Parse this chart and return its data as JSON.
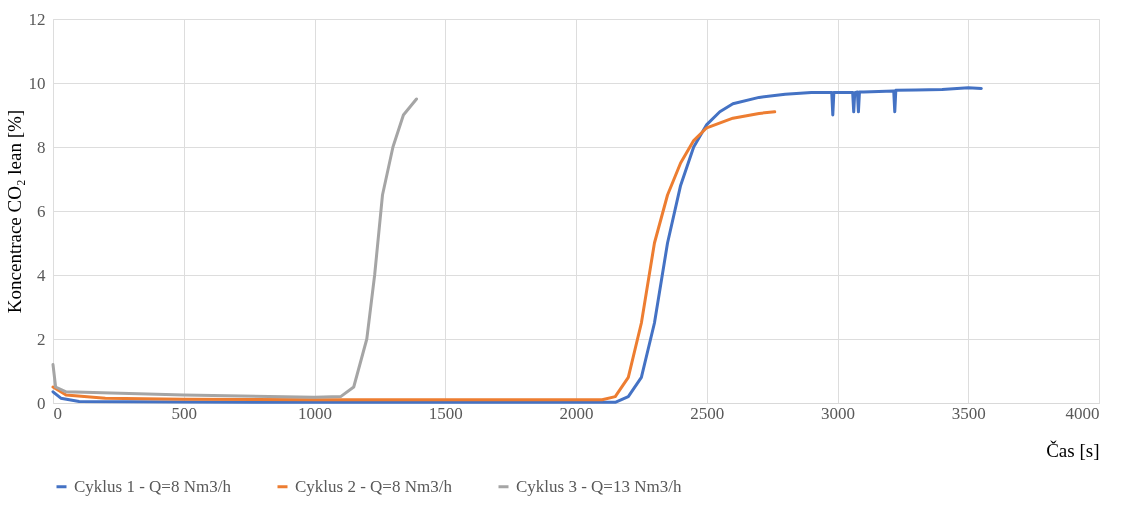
{
  "chart_data": {
    "type": "line",
    "xlabel": "Čas [s]",
    "ylabel": "Koncentrace CO₂ lean [%]",
    "xlim": [
      0,
      4000
    ],
    "xticks": [
      0,
      500,
      1000,
      1500,
      2000,
      2500,
      3000,
      3500,
      4000
    ],
    "ylim": [
      0,
      12
    ],
    "yticks": [
      0,
      2,
      4,
      6,
      8,
      10,
      12
    ],
    "grid": true,
    "legend": "bottom",
    "line_style": "solid",
    "marker": "none",
    "series": [
      {
        "name": "Cyklus 1 - Q=8 Nm3/h",
        "color": "#4472c4",
        "x": [
          0,
          30,
          100,
          500,
          1000,
          1500,
          2000,
          2150,
          2200,
          2250,
          2300,
          2350,
          2400,
          2450,
          2500,
          2550,
          2600,
          2700,
          2800,
          2900,
          2978,
          2982,
          2986,
          3000,
          3058,
          3062,
          3066,
          3076,
          3080,
          3084,
          3100,
          3215,
          3219,
          3223,
          3300,
          3400,
          3500,
          3550
        ],
        "values": [
          0.35,
          0.15,
          0.05,
          0.03,
          0.02,
          0.02,
          0.02,
          0.02,
          0.2,
          0.8,
          2.5,
          5.0,
          6.8,
          8.0,
          8.7,
          9.1,
          9.35,
          9.55,
          9.65,
          9.7,
          9.7,
          9.0,
          9.7,
          9.7,
          9.7,
          9.1,
          9.7,
          9.72,
          9.1,
          9.72,
          9.72,
          9.75,
          9.1,
          9.77,
          9.78,
          9.8,
          9.85,
          9.83
        ]
      },
      {
        "name": "Cyklus 2 - Q=8 Nm3/h",
        "color": "#ed7d31",
        "x": [
          0,
          50,
          200,
          500,
          1000,
          1500,
          2000,
          2100,
          2150,
          2200,
          2250,
          2300,
          2350,
          2400,
          2450,
          2500,
          2600,
          2700,
          2760
        ],
        "values": [
          0.5,
          0.25,
          0.15,
          0.12,
          0.1,
          0.1,
          0.1,
          0.1,
          0.2,
          0.8,
          2.5,
          5.0,
          6.5,
          7.5,
          8.2,
          8.6,
          8.9,
          9.05,
          9.1
        ]
      },
      {
        "name": "Cyklus 3 - Q=13 Nm3/h",
        "color": "#a5a5a5",
        "x": [
          0,
          10,
          50,
          500,
          1000,
          1100,
          1150,
          1200,
          1230,
          1260,
          1300,
          1340,
          1390
        ],
        "values": [
          1.2,
          0.5,
          0.35,
          0.25,
          0.18,
          0.2,
          0.5,
          2.0,
          4.0,
          6.5,
          8.0,
          9.0,
          9.5
        ]
      }
    ]
  }
}
